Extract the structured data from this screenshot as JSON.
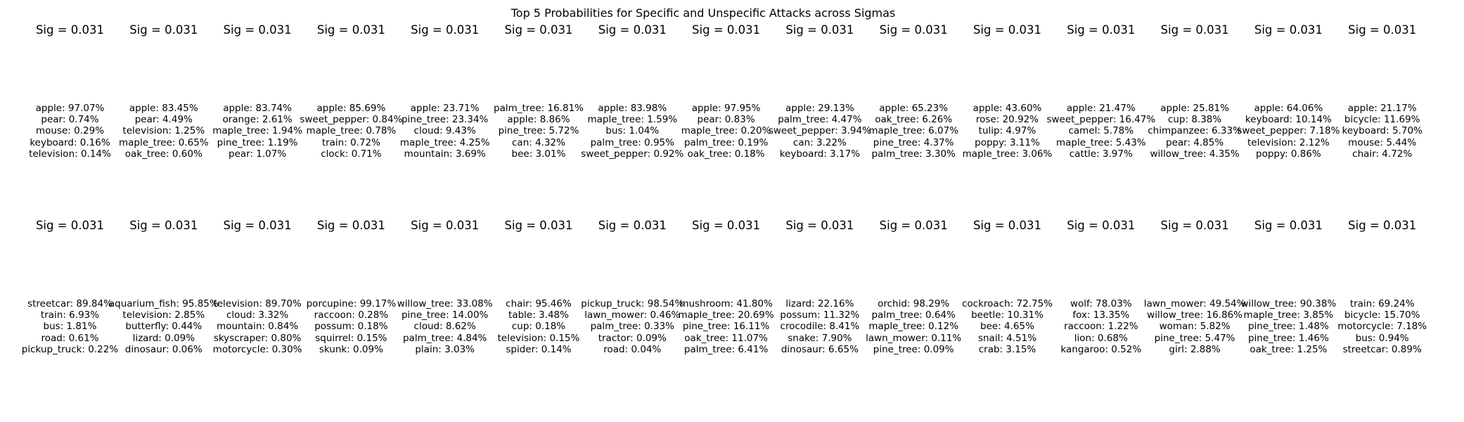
{
  "chart_data": {
    "type": "table",
    "title": "Top 5 Probabilities for Specific and Unspecific Attacks across Sigmas",
    "rows": [
      {
        "panels": [
          {
            "title": "Sig = 0.031",
            "lines": [
              "apple: 97.07%",
              "pear: 0.74%",
              "mouse: 0.29%",
              "keyboard: 0.16%",
              "television: 0.14%"
            ]
          },
          {
            "title": "Sig = 0.031",
            "lines": [
              "apple: 83.45%",
              "pear: 4.49%",
              "television: 1.25%",
              "maple_tree: 0.65%",
              "oak_tree: 0.60%"
            ]
          },
          {
            "title": "Sig = 0.031",
            "lines": [
              "apple: 83.74%",
              "orange: 2.61%",
              "maple_tree: 1.94%",
              "pine_tree: 1.19%",
              "pear: 1.07%"
            ]
          },
          {
            "title": "Sig = 0.031",
            "lines": [
              "apple: 85.69%",
              "sweet_pepper: 0.84%",
              "maple_tree: 0.78%",
              "train: 0.72%",
              "clock: 0.71%"
            ]
          },
          {
            "title": "Sig = 0.031",
            "lines": [
              "apple: 23.71%",
              "pine_tree: 23.34%",
              "cloud: 9.43%",
              "maple_tree: 4.25%",
              "mountain: 3.69%"
            ]
          },
          {
            "title": "Sig = 0.031",
            "lines": [
              "palm_tree: 16.81%",
              "apple: 8.86%",
              "pine_tree: 5.72%",
              "can: 4.32%",
              "bee: 3.01%"
            ]
          },
          {
            "title": "Sig = 0.031",
            "lines": [
              "apple: 83.98%",
              "maple_tree: 1.59%",
              "bus: 1.04%",
              "palm_tree: 0.95%",
              "sweet_pepper: 0.92%"
            ]
          },
          {
            "title": "Sig = 0.031",
            "lines": [
              "apple: 97.95%",
              "pear: 0.83%",
              "maple_tree: 0.20%",
              "palm_tree: 0.19%",
              "oak_tree: 0.18%"
            ]
          },
          {
            "title": "Sig = 0.031",
            "lines": [
              "apple: 29.13%",
              "palm_tree: 4.47%",
              "sweet_pepper: 3.94%",
              "can: 3.22%",
              "keyboard: 3.17%"
            ]
          },
          {
            "title": "Sig = 0.031",
            "lines": [
              "apple: 65.23%",
              "oak_tree: 6.26%",
              "maple_tree: 6.07%",
              "pine_tree: 4.37%",
              "palm_tree: 3.30%"
            ]
          },
          {
            "title": "Sig = 0.031",
            "lines": [
              "apple: 43.60%",
              "rose: 20.92%",
              "tulip: 4.97%",
              "poppy: 3.11%",
              "maple_tree: 3.06%"
            ]
          },
          {
            "title": "Sig = 0.031",
            "lines": [
              "apple: 21.47%",
              "sweet_pepper: 16.47%",
              "camel: 5.78%",
              "maple_tree: 5.43%",
              "cattle: 3.97%"
            ]
          },
          {
            "title": "Sig = 0.031",
            "lines": [
              "apple: 25.81%",
              "cup: 8.38%",
              "chimpanzee: 6.33%",
              "pear: 4.85%",
              "willow_tree: 4.35%"
            ]
          },
          {
            "title": "Sig = 0.031",
            "lines": [
              "apple: 64.06%",
              "keyboard: 10.14%",
              "sweet_pepper: 7.18%",
              "television: 2.12%",
              "poppy: 0.86%"
            ]
          },
          {
            "title": "Sig = 0.031",
            "lines": [
              "apple: 21.17%",
              "bicycle: 11.69%",
              "keyboard: 5.70%",
              "mouse: 5.44%",
              "chair: 4.72%"
            ]
          }
        ]
      },
      {
        "panels": [
          {
            "title": "Sig = 0.031",
            "lines": [
              "streetcar: 89.84%",
              "train: 6.93%",
              "bus: 1.81%",
              "road: 0.61%",
              "pickup_truck: 0.22%"
            ]
          },
          {
            "title": "Sig = 0.031",
            "lines": [
              "aquarium_fish: 95.85%",
              "television: 2.85%",
              "butterfly: 0.44%",
              "lizard: 0.09%",
              "dinosaur: 0.06%"
            ]
          },
          {
            "title": "Sig = 0.031",
            "lines": [
              "television: 89.70%",
              "cloud: 3.32%",
              "mountain: 0.84%",
              "skyscraper: 0.80%",
              "motorcycle: 0.30%"
            ]
          },
          {
            "title": "Sig = 0.031",
            "lines": [
              "porcupine: 99.17%",
              "raccoon: 0.28%",
              "possum: 0.18%",
              "squirrel: 0.15%",
              "skunk: 0.09%"
            ]
          },
          {
            "title": "Sig = 0.031",
            "lines": [
              "willow_tree: 33.08%",
              "pine_tree: 14.00%",
              "cloud: 8.62%",
              "palm_tree: 4.84%",
              "plain: 3.03%"
            ]
          },
          {
            "title": "Sig = 0.031",
            "lines": [
              "chair: 95.46%",
              "table: 3.48%",
              "cup: 0.18%",
              "television: 0.15%",
              "spider: 0.14%"
            ]
          },
          {
            "title": "Sig = 0.031",
            "lines": [
              "pickup_truck: 98.54%",
              "lawn_mower: 0.46%",
              "palm_tree: 0.33%",
              "tractor: 0.09%",
              "road: 0.04%"
            ]
          },
          {
            "title": "Sig = 0.031",
            "lines": [
              "mushroom: 41.80%",
              "maple_tree: 20.69%",
              "pine_tree: 16.11%",
              "oak_tree: 11.07%",
              "palm_tree: 6.41%"
            ]
          },
          {
            "title": "Sig = 0.031",
            "lines": [
              "lizard: 22.16%",
              "possum: 11.32%",
              "crocodile: 8.41%",
              "snake: 7.90%",
              "dinosaur: 6.65%"
            ]
          },
          {
            "title": "Sig = 0.031",
            "lines": [
              "orchid: 98.29%",
              "palm_tree: 0.64%",
              "maple_tree: 0.12%",
              "lawn_mower: 0.11%",
              "pine_tree: 0.09%"
            ]
          },
          {
            "title": "Sig = 0.031",
            "lines": [
              "cockroach: 72.75%",
              "beetle: 10.31%",
              "bee: 4.65%",
              "snail: 4.51%",
              "crab: 3.15%"
            ]
          },
          {
            "title": "Sig = 0.031",
            "lines": [
              "wolf: 78.03%",
              "fox: 13.35%",
              "raccoon: 1.22%",
              "lion: 0.68%",
              "kangaroo: 0.52%"
            ]
          },
          {
            "title": "Sig = 0.031",
            "lines": [
              "lawn_mower: 49.54%",
              "willow_tree: 16.86%",
              "woman: 5.82%",
              "pine_tree: 5.47%",
              "girl: 2.88%"
            ]
          },
          {
            "title": "Sig = 0.031",
            "lines": [
              "willow_tree: 90.38%",
              "maple_tree: 3.85%",
              "pine_tree: 1.48%",
              "pine_tree: 1.46%",
              "oak_tree: 1.25%"
            ]
          },
          {
            "title": "Sig = 0.031",
            "lines": [
              "train: 69.24%",
              "bicycle: 15.70%",
              "motorcycle: 7.18%",
              "bus: 0.94%",
              "streetcar: 0.89%"
            ]
          }
        ]
      }
    ]
  }
}
